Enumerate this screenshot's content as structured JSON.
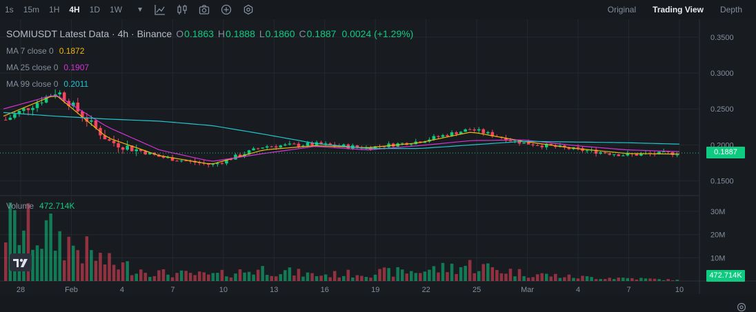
{
  "toolbar": {
    "timeframes": [
      {
        "label": "1s",
        "active": false
      },
      {
        "label": "15m",
        "active": false
      },
      {
        "label": "1H",
        "active": false
      },
      {
        "label": "4H",
        "active": true
      },
      {
        "label": "1D",
        "active": false
      },
      {
        "label": "1W",
        "active": false
      }
    ],
    "icons": [
      "caret-down-icon",
      "line-chart-icon",
      "candlestick-indicator-icon",
      "camera-icon",
      "add-circle-icon",
      "gear-hex-icon"
    ],
    "views": [
      {
        "label": "Original",
        "active": false
      },
      {
        "label": "Trading View",
        "active": true
      },
      {
        "label": "Depth",
        "active": false
      }
    ]
  },
  "legend": {
    "title": "SOMIUSDT Latest Data · 4h · Binance",
    "ohlc": [
      {
        "label": "O",
        "value": "0.1863"
      },
      {
        "label": "H",
        "value": "0.1888"
      },
      {
        "label": "L",
        "value": "0.1860"
      },
      {
        "label": "C",
        "value": "0.1887"
      }
    ],
    "change": "0.0024 (+1.29%)",
    "ma": [
      {
        "label": "MA 7 close 0",
        "value": "0.1872",
        "color": "#f0b90b"
      },
      {
        "label": "MA 25 close 0",
        "value": "0.1907",
        "color": "#d633d6"
      },
      {
        "label": "MA 99 close 0",
        "value": "0.2011",
        "color": "#21c5cf"
      }
    ],
    "volume_label": "Volume",
    "volume_value": "472.714K"
  },
  "price_axis": {
    "ticks": [
      "0.3500",
      "0.3000",
      "0.2500",
      "0.2000",
      "0.1500"
    ],
    "current_price": "0.1887"
  },
  "volume_axis": {
    "ticks": [
      "30M",
      "20M",
      "10M"
    ],
    "current_volume": "472.714K"
  },
  "time_axis": {
    "ticks": [
      "28",
      "Feb",
      "4",
      "7",
      "10",
      "13",
      "16",
      "19",
      "22",
      "25",
      "Mar",
      "4",
      "7",
      "10"
    ]
  },
  "colors": {
    "up": "#0ecb81",
    "down": "#f6465d",
    "background": "#181c21"
  },
  "chart_data": {
    "type": "candlestick",
    "symbol": "SOMIUSDT",
    "interval": "4h",
    "x": [
      "2025-01-28",
      "2025-02-01",
      "2025-02-04",
      "2025-02-07",
      "2025-02-10",
      "2025-02-13",
      "2025-02-16",
      "2025-02-19",
      "2025-02-22",
      "2025-02-25",
      "2025-03-01",
      "2025-03-04",
      "2025-03-07",
      "2025-03-10"
    ],
    "close": [
      0.235,
      0.275,
      0.205,
      0.183,
      0.172,
      0.198,
      0.201,
      0.196,
      0.205,
      0.222,
      0.203,
      0.194,
      0.186,
      0.1887
    ],
    "ma7": [
      0.24,
      0.27,
      0.21,
      0.185,
      0.173,
      0.193,
      0.199,
      0.196,
      0.203,
      0.218,
      0.205,
      0.195,
      0.188,
      0.1872
    ],
    "ma25": [
      0.25,
      0.27,
      0.225,
      0.193,
      0.177,
      0.188,
      0.198,
      0.193,
      0.199,
      0.206,
      0.207,
      0.199,
      0.193,
      0.1907
    ],
    "ma99": [
      0.245,
      0.24,
      0.236,
      0.233,
      0.227,
      0.215,
      0.202,
      0.195,
      0.195,
      0.2,
      0.205,
      0.204,
      0.203,
      0.2011
    ],
    "volume_millions": [
      28,
      22,
      9,
      4,
      3,
      6,
      3,
      4,
      5,
      8,
      4,
      2,
      1.5,
      0.47
    ],
    "ylim": [
      0.14,
      0.37
    ],
    "volume_ylim": [
      0,
      35
    ]
  }
}
